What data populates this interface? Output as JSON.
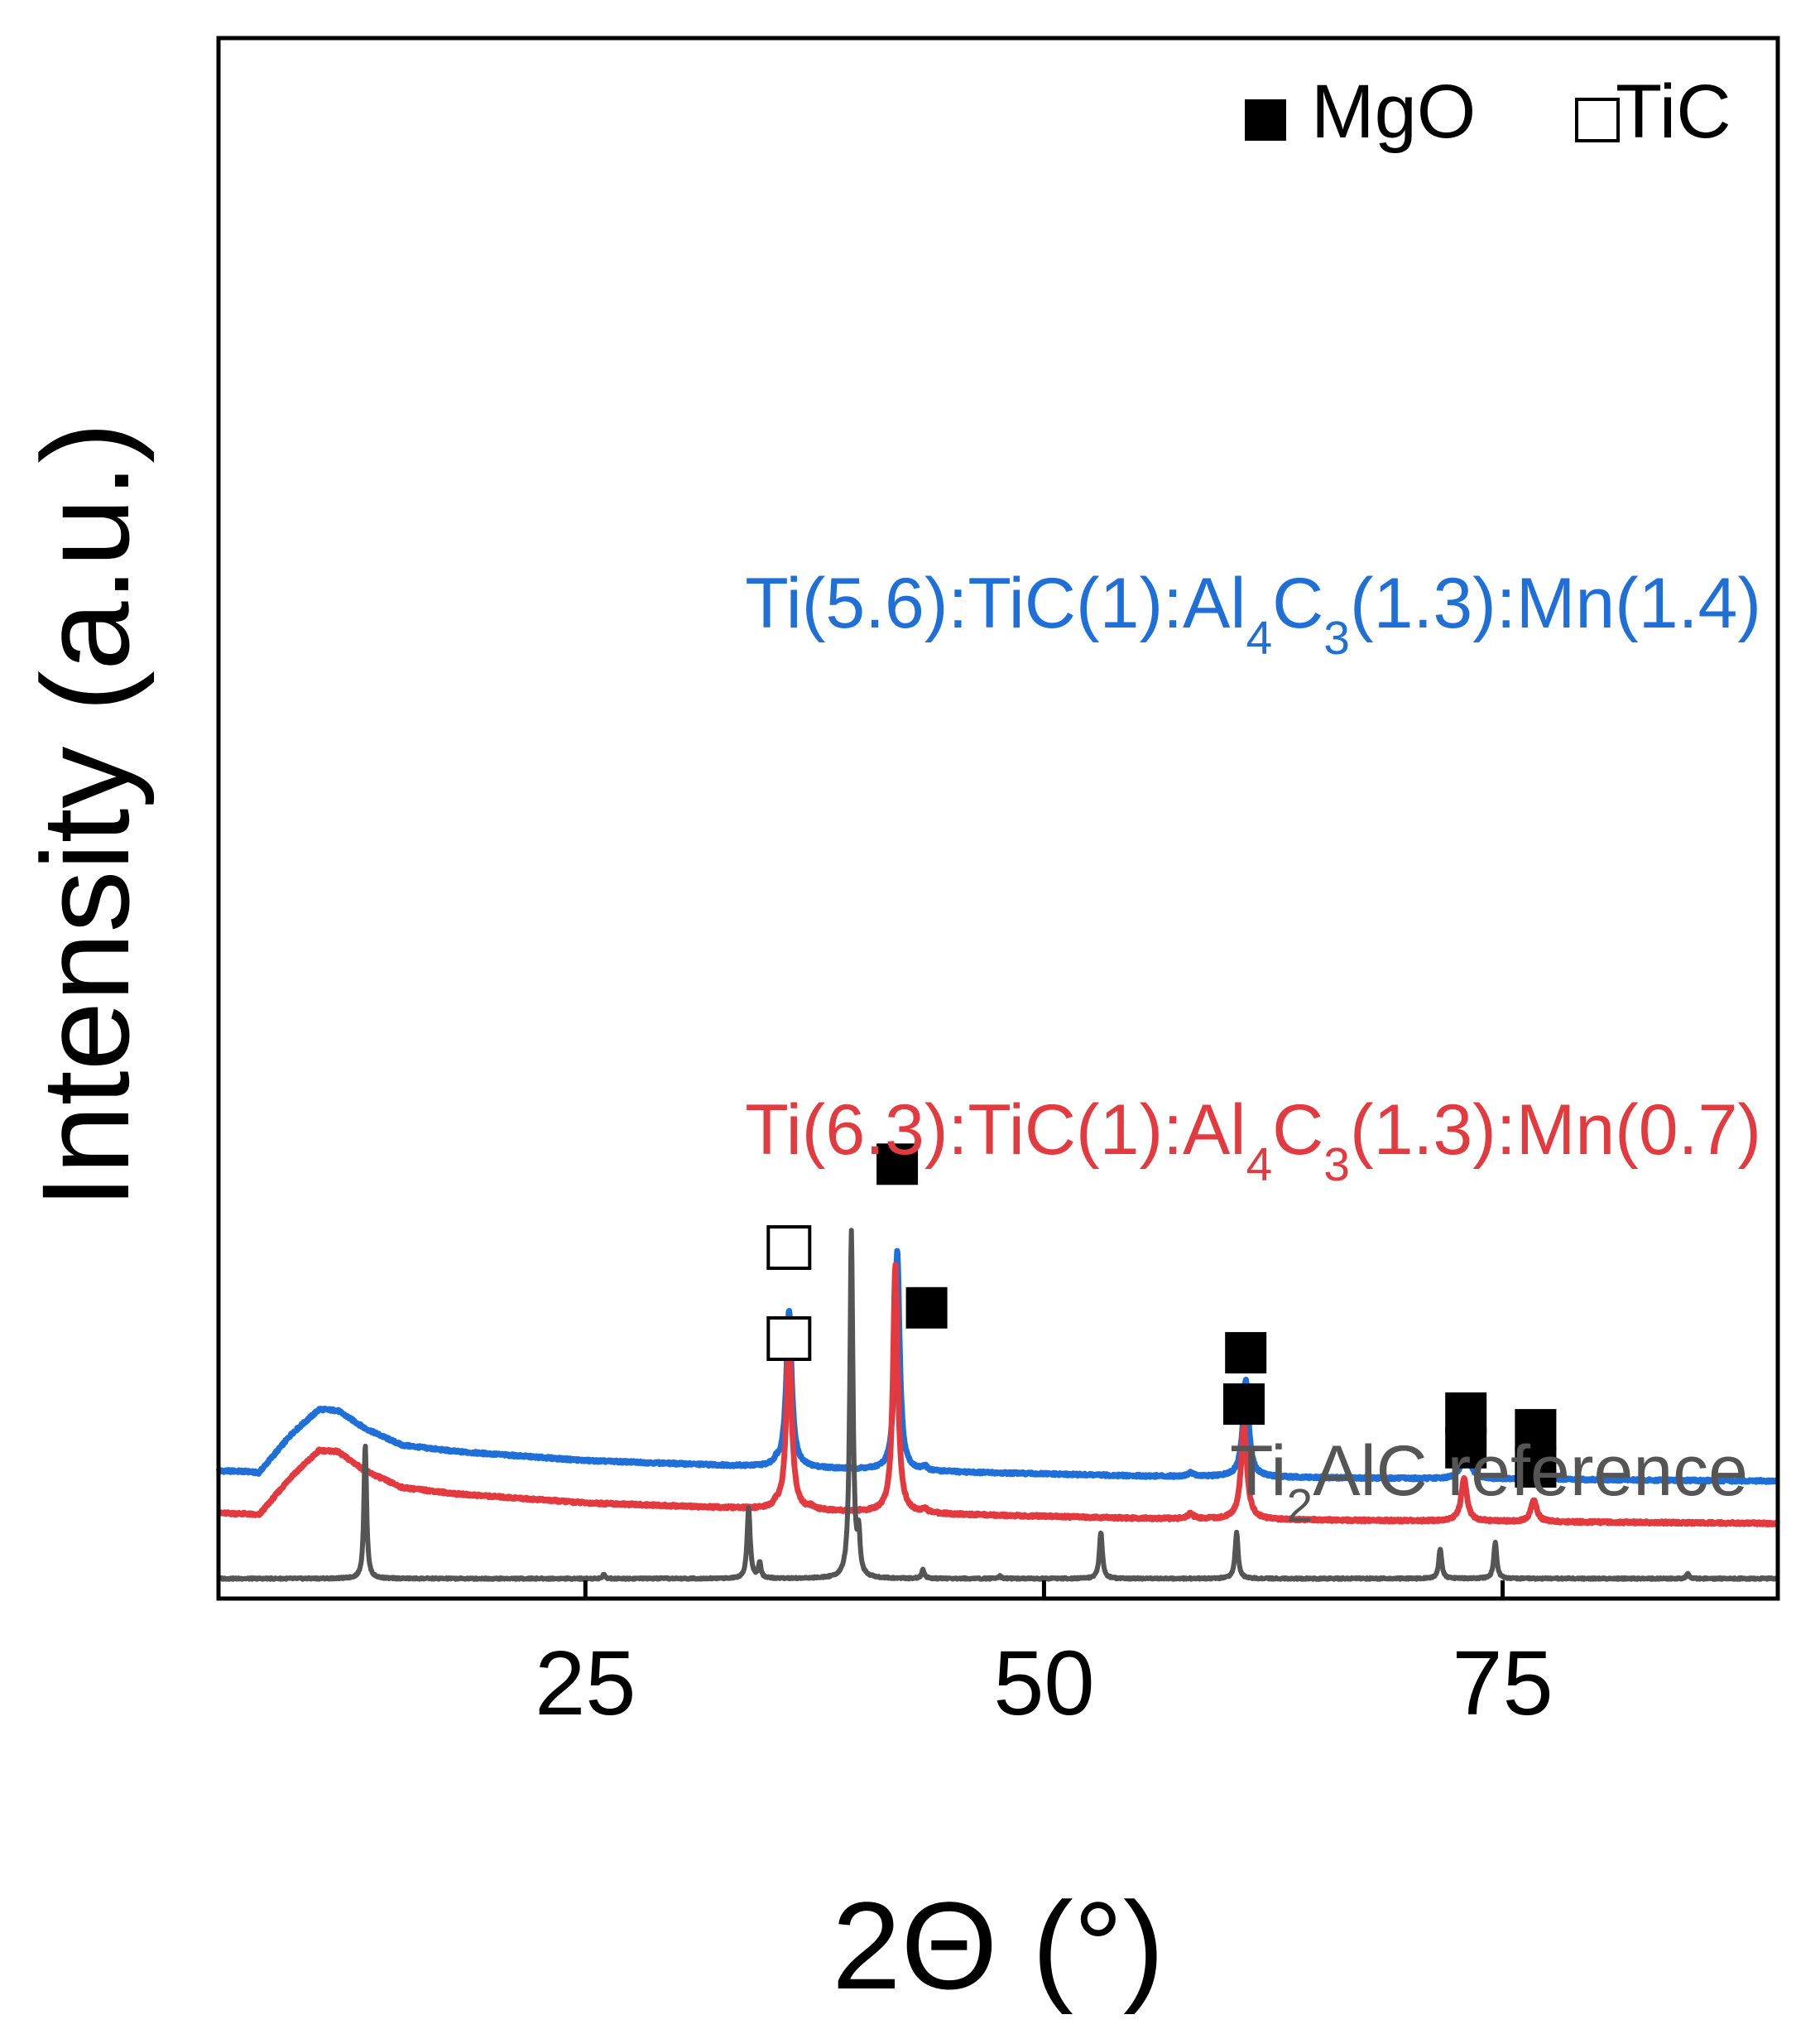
{
  "chart_data": {
    "type": "line",
    "xlabel": "2Θ (°)",
    "ylabel": "Intensity (a.u.)",
    "xlim": [
      5,
      90
    ],
    "x_ticks": [
      {
        "value": 25,
        "label": "25"
      },
      {
        "value": 50,
        "label": "50"
      },
      {
        "value": 75,
        "label": "75"
      }
    ],
    "y_ticks_shown": false,
    "grid": false,
    "legend": {
      "placement": "top-right",
      "items": [
        {
          "marker": "filled-square",
          "label": "MgO"
        },
        {
          "marker": "open-square",
          "label": "TiC"
        }
      ]
    },
    "series": [
      {
        "name": "Ti(5.6):TiC(1):Al4C3(1.3):Mn(1.4)",
        "label_parts": [
          {
            "text": "Ti(5.6):TiC(1):Al",
            "sub": false
          },
          {
            "text": "4",
            "sub": true
          },
          {
            "text": "C",
            "sub": false
          },
          {
            "text": "3",
            "sub": true
          },
          {
            "text": "(1.3):Mn(1.4)",
            "sub": false
          }
        ],
        "color": "#1f6fd8",
        "baseline": [
          [
            5,
            0.86
          ],
          [
            6.5,
            0.855
          ],
          [
            7.2,
            0.845
          ],
          [
            9,
            1.15
          ],
          [
            10.5,
            1.34
          ],
          [
            11.5,
            1.33
          ],
          [
            13,
            1.19
          ],
          [
            15,
            1.06
          ],
          [
            18,
            1.01
          ],
          [
            25,
            0.94
          ],
          [
            35,
            0.89
          ],
          [
            45,
            0.85
          ],
          [
            55,
            0.82
          ],
          [
            70,
            0.8
          ],
          [
            90,
            0.78
          ]
        ],
        "peaks": [
          {
            "x": 36.1,
            "h": 1.23,
            "w": 0.25
          },
          {
            "x": 42.0,
            "h": 1.72,
            "w": 0.22
          },
          {
            "x": 61.0,
            "h": 0.76,
            "w": 0.27
          },
          {
            "x": 73.0,
            "h": 0.37,
            "w": 0.27
          },
          {
            "x": 76.8,
            "h": 0.18,
            "w": 0.27
          },
          {
            "x": 35.4,
            "h": 0.03,
            "w": 0.2
          },
          {
            "x": 43.5,
            "h": 0.03,
            "w": 0.2
          },
          {
            "x": 58.0,
            "h": 0.03,
            "w": 0.25
          }
        ]
      },
      {
        "name": "Ti(6.3):TiC(1):Al4C3(1.3):Mn(0.7)",
        "label_parts": [
          {
            "text": "Ti(6.3):TiC(1):Al",
            "sub": false
          },
          {
            "text": "4",
            "sub": true
          },
          {
            "text": "C",
            "sub": false
          },
          {
            "text": "3",
            "sub": true
          },
          {
            "text": "(1.3):Mn(0.7)",
            "sub": false
          }
        ],
        "color": "#e23a3f",
        "baseline": [
          [
            5,
            0.53
          ],
          [
            6.5,
            0.525
          ],
          [
            7.2,
            0.515
          ],
          [
            9,
            0.82
          ],
          [
            10.5,
            1.02
          ],
          [
            11.5,
            1.01
          ],
          [
            13,
            0.86
          ],
          [
            15,
            0.73
          ],
          [
            18,
            0.68
          ],
          [
            25,
            0.61
          ],
          [
            35,
            0.56
          ],
          [
            45,
            0.52
          ],
          [
            55,
            0.49
          ],
          [
            70,
            0.47
          ],
          [
            90,
            0.45
          ]
        ],
        "peaks": [
          {
            "x": 36.1,
            "h": 1.29,
            "w": 0.25
          },
          {
            "x": 41.9,
            "h": 1.93,
            "w": 0.22
          },
          {
            "x": 60.9,
            "h": 0.73,
            "w": 0.27
          },
          {
            "x": 72.9,
            "h": 0.33,
            "w": 0.27
          },
          {
            "x": 76.7,
            "h": 0.17,
            "w": 0.27
          },
          {
            "x": 35.4,
            "h": 0.03,
            "w": 0.2
          },
          {
            "x": 37.3,
            "h": 0.02,
            "w": 0.2
          },
          {
            "x": 43.5,
            "h": 0.03,
            "w": 0.2
          },
          {
            "x": 58.0,
            "h": 0.04,
            "w": 0.25
          }
        ]
      },
      {
        "name": "Ti2AlC reference",
        "label_parts": [
          {
            "text": "Ti",
            "sub": false
          },
          {
            "text": "2",
            "sub": true
          },
          {
            "text": "AlC reference",
            "sub": false
          }
        ],
        "color": "#555555",
        "baseline": [
          [
            5,
            0.02
          ],
          [
            90,
            0.02
          ]
        ],
        "peaks": [
          {
            "x": 13.0,
            "h": 1.05,
            "w": 0.12
          },
          {
            "x": 26.0,
            "h": 0.03,
            "w": 0.12
          },
          {
            "x": 33.9,
            "h": 0.55,
            "w": 0.14
          },
          {
            "x": 34.5,
            "h": 0.12,
            "w": 0.12
          },
          {
            "x": 39.5,
            "h": 2.7,
            "w": 0.14
          },
          {
            "x": 39.9,
            "h": 0.3,
            "w": 0.12
          },
          {
            "x": 43.4,
            "h": 0.07,
            "w": 0.12
          },
          {
            "x": 47.6,
            "h": 0.02,
            "w": 0.12
          },
          {
            "x": 53.1,
            "h": 0.36,
            "w": 0.14
          },
          {
            "x": 60.5,
            "h": 0.36,
            "w": 0.14
          },
          {
            "x": 71.6,
            "h": 0.23,
            "w": 0.14
          },
          {
            "x": 74.6,
            "h": 0.28,
            "w": 0.14
          },
          {
            "x": 85.1,
            "h": 0.04,
            "w": 0.12
          }
        ]
      }
    ],
    "ylim": [
      0,
      3.55
    ],
    "peak_markers": [
      {
        "series": 0,
        "x": 36.1,
        "y": 2.6,
        "marker": "open-square"
      },
      {
        "series": 0,
        "x": 42.0,
        "y": 3.25,
        "marker": "filled-square"
      },
      {
        "series": 0,
        "x": 61.0,
        "y": 1.78,
        "marker": "filled-square"
      },
      {
        "series": 0,
        "x": 73.0,
        "y": 1.31,
        "marker": "filled-square"
      },
      {
        "series": 0,
        "x": 76.8,
        "y": 1.18,
        "marker": "filled-square"
      },
      {
        "series": 1,
        "x": 36.1,
        "y": 1.89,
        "marker": "open-square"
      },
      {
        "series": 1,
        "x": 43.6,
        "y": 2.13,
        "marker": "filled-square"
      },
      {
        "series": 1,
        "x": 60.9,
        "y": 1.38,
        "marker": "filled-square"
      },
      {
        "series": 1,
        "x": 73.0,
        "y": 1.04,
        "marker": "filled-square"
      },
      {
        "series": 1,
        "x": 76.8,
        "y": 0.89,
        "marker": "filled-square"
      }
    ]
  }
}
